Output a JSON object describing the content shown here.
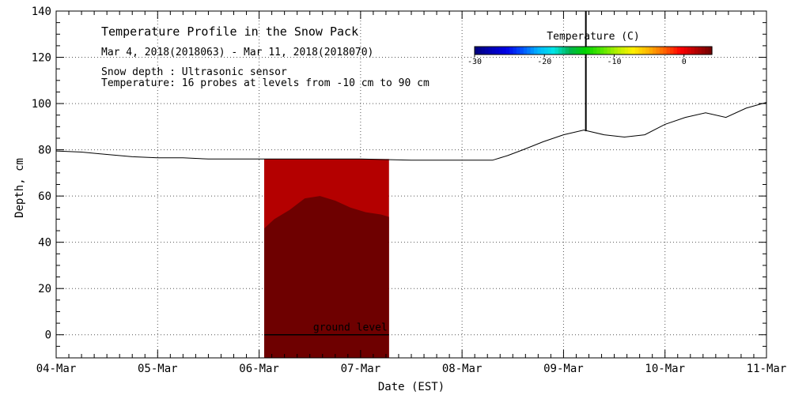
{
  "chart_data": {
    "type": "area",
    "title": "Temperature Profile in the Snow Pack",
    "subtitle": "Mar  4, 2018(2018063) - Mar 11, 2018(2018070)",
    "notes": [
      "Snow depth : Ultrasonic sensor",
      "Temperature: 16 probes at levels from -10 cm to 90 cm"
    ],
    "xlabel": "Date (EST)",
    "ylabel": "Depth, cm",
    "x_ticks": [
      "04-Mar",
      "05-Mar",
      "06-Mar",
      "07-Mar",
      "08-Mar",
      "09-Mar",
      "10-Mar",
      "11-Mar"
    ],
    "xlim": [
      0,
      7
    ],
    "ylim": [
      -10,
      140
    ],
    "y_ticks": [
      0,
      20,
      40,
      60,
      80,
      100,
      120,
      140
    ],
    "grid": true,
    "ground_level_label": "ground level",
    "colorbar": {
      "title": "Temperature (C)",
      "range": [
        -30,
        4
      ],
      "ticks": [
        -30,
        -20,
        -10,
        0
      ],
      "tick_labels": [
        "-30",
        "-20",
        "-10",
        "0"
      ],
      "colors": [
        "#00007a",
        "#0000b4",
        "#0000e6",
        "#0050ff",
        "#00b4ff",
        "#00e6e6",
        "#00b450",
        "#00d200",
        "#50e600",
        "#b4f000",
        "#fff000",
        "#ffb400",
        "#ff6400",
        "#ff0000",
        "#b40000",
        "#6e0000"
      ]
    },
    "series": [
      {
        "type": "line",
        "x": [
          0.0,
          0.25,
          0.5,
          0.75,
          1.0,
          1.25,
          1.5,
          1.75,
          2.0,
          2.5,
          3.0,
          3.5,
          4.0,
          4.3,
          4.45,
          4.6,
          4.8,
          5.0,
          5.2,
          5.4,
          5.6,
          5.8,
          6.0,
          6.2,
          6.4,
          6.6,
          6.8,
          7.0
        ],
        "y": [
          79.5,
          79,
          78,
          77,
          76.5,
          76.5,
          76,
          76,
          76,
          76,
          76,
          75.5,
          75.5,
          75.5,
          77.5,
          80,
          83.5,
          86.5,
          88.5,
          86.5,
          85.5,
          86.5,
          91,
          94,
          96,
          94,
          98,
          100.5
        ]
      },
      {
        "type": "spike",
        "x": 5.22,
        "y": [
          88,
          140
        ]
      },
      {
        "type": "area",
        "x": [
          2.05,
          2.15,
          2.3,
          2.45,
          2.6,
          2.75,
          2.9,
          3.05,
          3.2,
          3.28
        ],
        "y_upper": [
          76,
          76,
          76,
          76,
          76,
          76,
          76,
          76,
          76,
          76
        ],
        "y_lower": [
          46,
          50,
          54,
          59,
          60,
          58,
          55,
          53,
          52,
          51
        ],
        "top_temp_c": 1,
        "bottom_temp_c": 3
      }
    ],
    "ground_level": {
      "x": [
        2.05,
        3.28
      ],
      "y": 0
    }
  }
}
